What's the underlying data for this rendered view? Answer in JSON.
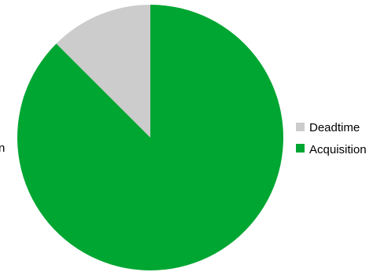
{
  "chart_data": {
    "type": "pie",
    "title": "",
    "slices": [
      {
        "label": "Deadtime",
        "value": 12.5,
        "color": "#cccccc"
      },
      {
        "label": "Acquisition",
        "value": 87.5,
        "color": "#00a632"
      }
    ],
    "start_angle_deg": 0,
    "direction": "counterclockwise",
    "legend_position": "right",
    "edge_fragment": "n"
  }
}
